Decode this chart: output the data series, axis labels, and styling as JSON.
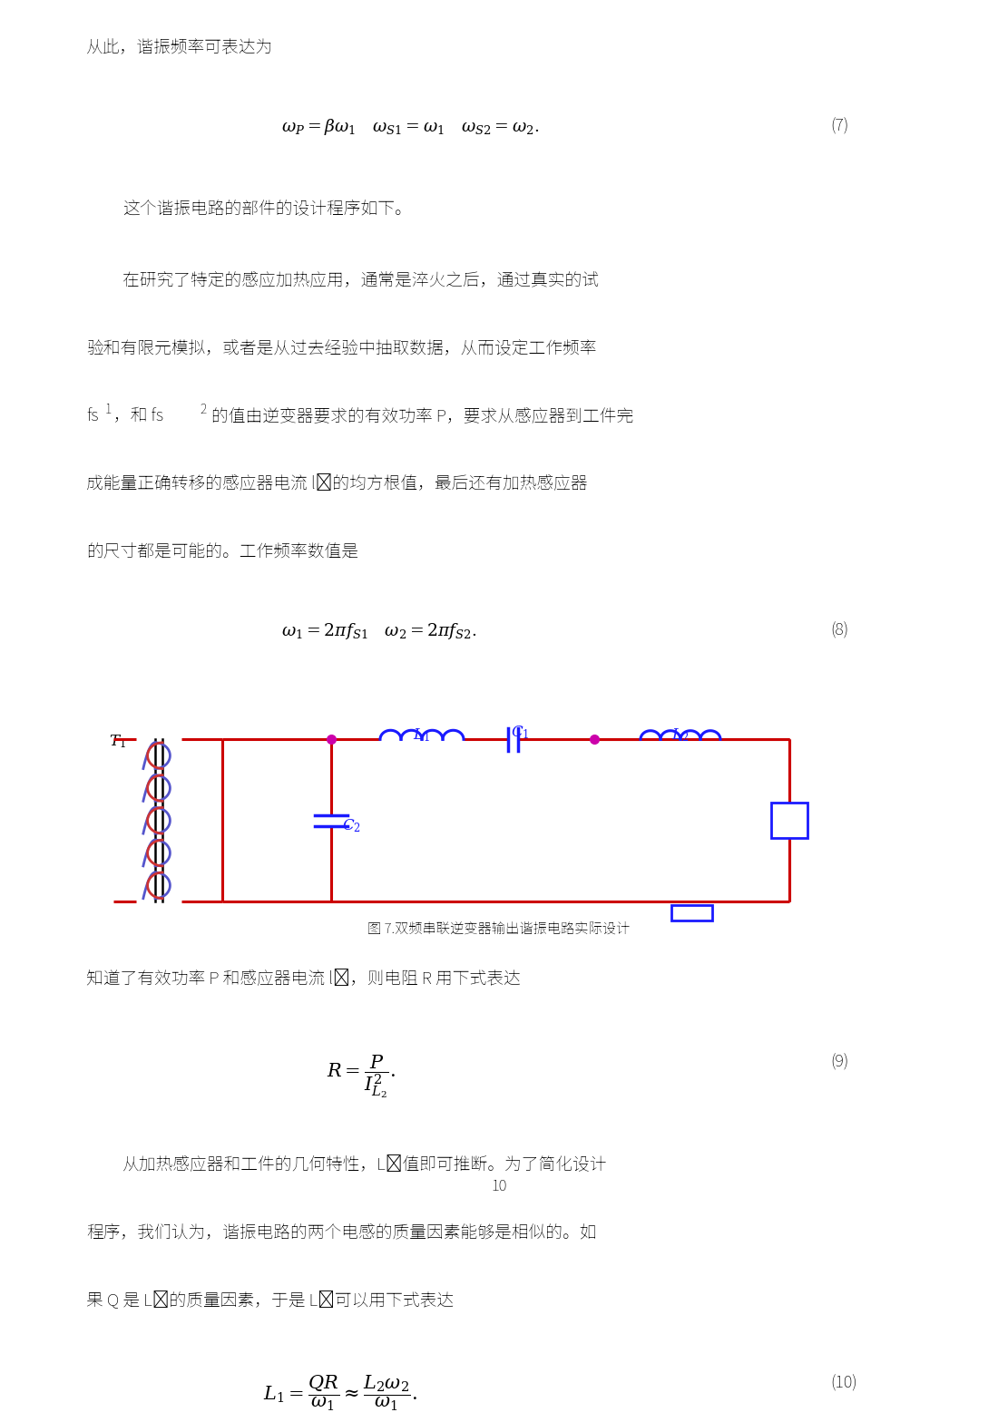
{
  "bg_color": "#ffffff",
  "text_color": "#000000",
  "page_width": 10.8,
  "page_height": 15.28,
  "circuit_color_red": "#cc0000",
  "circuit_color_blue": "#1a1aff",
  "page_number": "10",
  "para1": "从此，谐振频率可表达为",
  "eq7_label": "(7)",
  "eq7_text": "$\\omega_P = \\beta\\omega_1 \\quad \\omega_{S1} = \\omega_1 \\quad \\omega_{S2} = \\omega_2.$",
  "para2": "这个谐振电路的部件的设计程序如下。",
  "para3": "在研究了特定的感应加热应用，通常是淬火之后，通过真实的试",
  "para4": "验和有限元模拟，或者是从过去经验中抽取数据，从而设定工作频率",
  "para5_a": "fs",
  "para5_b": "1",
  "para5_c": "，和 fs",
  "para5_d": "2",
  "para5_e": "的值由逆变器要求的有效功率 P，要求从感应器到工件完",
  "para6": "成能量正确转移的感应器电流 l₂的均方根值，最后还有加热感应器",
  "para7": "的尺寸都是可能的。工作频率数值是",
  "eq8_label": "(8)",
  "eq8_text": "$\\omega_1 = 2\\pi f_{S1} \\quad \\omega_2 = 2\\pi f_{S2}.$",
  "fig_caption": "图 7.双频串联逆变器输出谐振电路实际设计",
  "para8": "知道了有效功率 P 和感应器电流 l₂，则电阻 R 用下式表达",
  "eq9_label": "(9)",
  "eq9_text": "$R = \\dfrac{P}{I^2_{L_2}}.$",
  "para9": "从加热感应器和工件的几何特性，L₂值即可推断。为了简化设计",
  "para10": "程序，我们认为，谐振电路的两个电感的质量因素能够是相似的。如",
  "para11": "果 Q 是 L₂的质量因素，于是 L₁可以用下式表达",
  "eq10_label": "(10)",
  "eq10_text": "$L_1 = \\dfrac{QR}{\\omega_1} \\approx \\dfrac{L_2\\omega_2}{\\omega_1}.$"
}
